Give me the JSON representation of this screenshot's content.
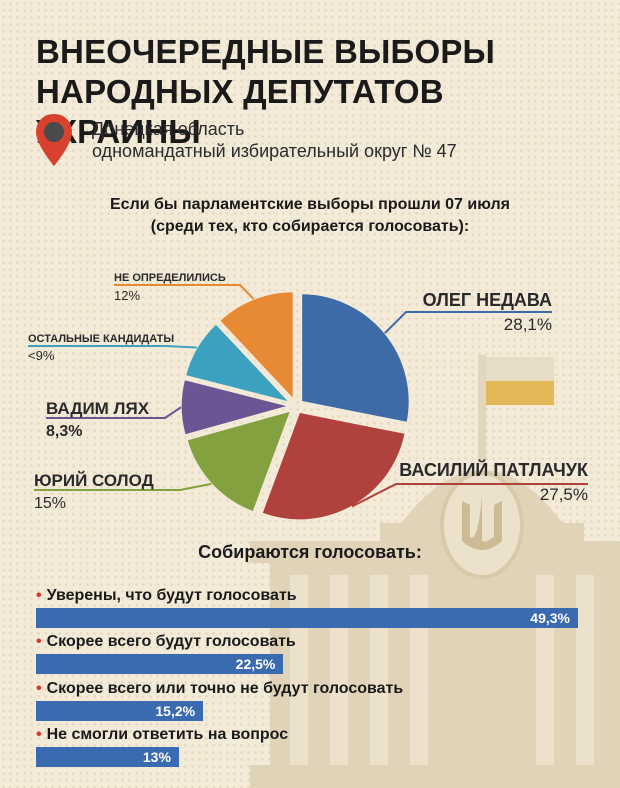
{
  "header": {
    "title_lines": [
      "ВНЕОЧЕРЕДНЫЕ ВЫБОРЫ",
      "НАРОДНЫХ ДЕПУТАТОВ УКРАИНЫ"
    ],
    "location_lines": [
      "Донецкая область",
      "одномандатный избирательный округ № 47"
    ]
  },
  "question_lines": [
    "Если бы парламентские выборы прошли 07 июля",
    "(среди тех, кто собирается голосовать):"
  ],
  "chart_data": [
    {
      "type": "pie",
      "title": "Если бы парламентские выборы прошли 07 июля (среди тех, кто собирается голосовать):",
      "slices": [
        {
          "label": "ОЛЕГ НЕДАВА",
          "value": 28.1,
          "display": "28,1%",
          "color": "#3e6aa8"
        },
        {
          "label": "ВАСИЛИЙ ПАТЛАЧУК",
          "value": 27.5,
          "display": "27,5%",
          "color": "#b0413c"
        },
        {
          "label": "ЮРИЙ СОЛОД",
          "value": 15,
          "display": "15%",
          "color": "#83a13f"
        },
        {
          "label": "ВАДИМ ЛЯХ",
          "value": 8.3,
          "display": "8,3%",
          "color": "#6c5593"
        },
        {
          "label": "ОСТАЛЬНЫЕ КАНДИДАТЫ",
          "value": 9,
          "display": "<9%",
          "color": "#3ba1bf"
        },
        {
          "label": "НЕ ОПРЕДЕЛИЛИСЬ",
          "value": 12,
          "display": "12%",
          "color": "#e88a33"
        }
      ]
    },
    {
      "type": "bar",
      "title": "Собираются голосовать:",
      "categories": [
        "Уверены, что будут голосовать",
        "Скорее всего будут голосовать",
        "Скорее всего или точно не будут голосовать",
        "Не смогли ответить на вопрос"
      ],
      "values": [
        49.3,
        22.5,
        15.2,
        13
      ],
      "labels": [
        "49,3%",
        "22,5%",
        "15,2%",
        "13%"
      ],
      "color": "#3a6ab0"
    }
  ],
  "colors": {
    "background": "#f3ead8",
    "bar": "#3a6ab0",
    "bullet": "#d9362b",
    "pin": "#d9412f",
    "flag_blue": "#e8dcc4",
    "flag_yellow": "#e2b856"
  },
  "icons": {
    "location": "map-pin-icon",
    "building": "parliament-building-illustration",
    "emblem": "trident-emblem"
  }
}
